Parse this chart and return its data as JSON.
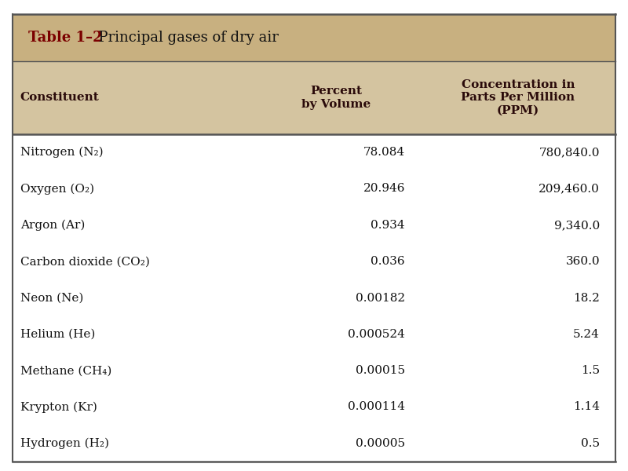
{
  "title_bold": "Table 1–2",
  "title_regular": "  Principal gases of dry air",
  "header_bg": "#D4C4A0",
  "header_text_color": "#2a0a0a",
  "title_bar_bg": "#C8B080",
  "col_headers": [
    "Constituent",
    "Percent\nby Volume",
    "Concentration in\nParts Per Million\n(PPM)"
  ],
  "rows": [
    [
      "Nitrogen (N₂)",
      "78.084",
      "780,840.0"
    ],
    [
      "Oxygen (O₂)",
      "20.946",
      "209,460.0"
    ],
    [
      "Argon (Ar)",
      "0.934",
      "9,340.0"
    ],
    [
      "Carbon dioxide (CO₂)",
      "0.036",
      "360.0"
    ],
    [
      "Neon (Ne)",
      "0.00182",
      "18.2"
    ],
    [
      "Helium (He)",
      "0.000524",
      "5.24"
    ],
    [
      "Methane (CH₄)",
      "0.00015",
      "1.5"
    ],
    [
      "Krypton (Kr)",
      "0.000114",
      "1.14"
    ],
    [
      "Hydrogen (H₂)",
      "0.00005",
      "0.5"
    ]
  ],
  "border_color": "#555555",
  "text_color": "#111111",
  "title_color": "#7B0000",
  "fig_bg": "#FFFFFF",
  "font_size_title": 13,
  "font_size_header": 11,
  "font_size_data": 11
}
